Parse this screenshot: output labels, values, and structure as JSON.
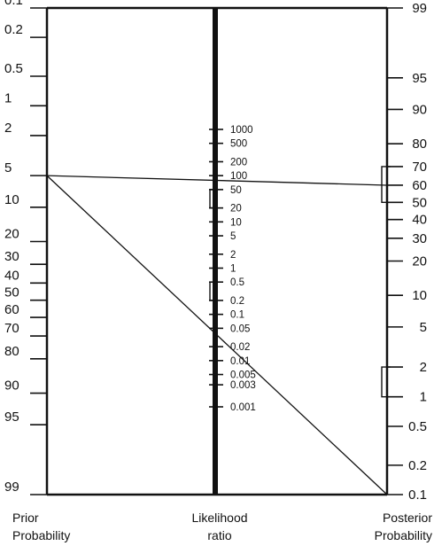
{
  "axes": {
    "prior": {
      "caption_line1": "Prior",
      "caption_line2": "Probability",
      "ticks": [
        {
          "label": "0.1",
          "value": 0.1
        },
        {
          "label": "0.2",
          "value": 0.2
        },
        {
          "label": "0.5",
          "value": 0.5
        },
        {
          "label": "1",
          "value": 1
        },
        {
          "label": "2",
          "value": 2
        },
        {
          "label": "5",
          "value": 5
        },
        {
          "label": "10",
          "value": 10
        },
        {
          "label": "20",
          "value": 20
        },
        {
          "label": "30",
          "value": 30
        },
        {
          "label": "40",
          "value": 40
        },
        {
          "label": "50",
          "value": 50
        },
        {
          "label": "60",
          "value": 60
        },
        {
          "label": "70",
          "value": 70
        },
        {
          "label": "80",
          "value": 80
        },
        {
          "label": "90",
          "value": 90
        },
        {
          "label": "95",
          "value": 95
        },
        {
          "label": "99",
          "value": 99
        }
      ]
    },
    "likelihood": {
      "caption_line1": "Likelihood",
      "caption_line2": "ratio",
      "ticks": [
        {
          "label": "1000",
          "value": 1000
        },
        {
          "label": "500",
          "value": 500
        },
        {
          "label": "200",
          "value": 200
        },
        {
          "label": "100",
          "value": 100
        },
        {
          "label": "50",
          "value": 50
        },
        {
          "label": "20",
          "value": 20
        },
        {
          "label": "10",
          "value": 10
        },
        {
          "label": "5",
          "value": 5
        },
        {
          "label": "2",
          "value": 2
        },
        {
          "label": "1",
          "value": 1
        },
        {
          "label": "0.5",
          "value": 0.5
        },
        {
          "label": "0.2",
          "value": 0.2
        },
        {
          "label": "0.1",
          "value": 0.1
        },
        {
          "label": "0.05",
          "value": 0.05
        },
        {
          "label": "0.02",
          "value": 0.02
        },
        {
          "label": "0.01",
          "value": 0.01
        },
        {
          "label": "0.005",
          "value": 0.005
        },
        {
          "label": "0.003",
          "value": 0.003
        },
        {
          "label": "0.001",
          "value": 0.001
        }
      ]
    },
    "posterior": {
      "caption_line1": "Posterior",
      "caption_line2": "Probability",
      "ticks": [
        {
          "label": "99",
          "value": 99
        },
        {
          "label": "95",
          "value": 95
        },
        {
          "label": "90",
          "value": 90
        },
        {
          "label": "80",
          "value": 80
        },
        {
          "label": "70",
          "value": 70
        },
        {
          "label": "60",
          "value": 60
        },
        {
          "label": "50",
          "value": 50
        },
        {
          "label": "40",
          "value": 40
        },
        {
          "label": "30",
          "value": 30
        },
        {
          "label": "20",
          "value": 20
        },
        {
          "label": "10",
          "value": 10
        },
        {
          "label": "5",
          "value": 5
        },
        {
          "label": "2",
          "value": 2
        },
        {
          "label": "1",
          "value": 1
        },
        {
          "label": "0.5",
          "value": 0.5
        },
        {
          "label": "0.2",
          "value": 0.2
        },
        {
          "label": "0.1",
          "value": 0.1
        }
      ]
    }
  },
  "lines": [
    {
      "from_prior": 5,
      "to_posterior": 60
    },
    {
      "from_prior": 5,
      "to_posterior": 0.1
    }
  ],
  "brackets": [
    {
      "axis": "likelihood",
      "from": 50,
      "to": 20
    },
    {
      "axis": "likelihood",
      "from": 0.5,
      "to": 0.2
    },
    {
      "axis": "posterior",
      "from": 70,
      "to": 50
    },
    {
      "axis": "posterior",
      "from": 2,
      "to": 1
    }
  ],
  "colors": {
    "ink": "#111111",
    "background": "#ffffff"
  }
}
